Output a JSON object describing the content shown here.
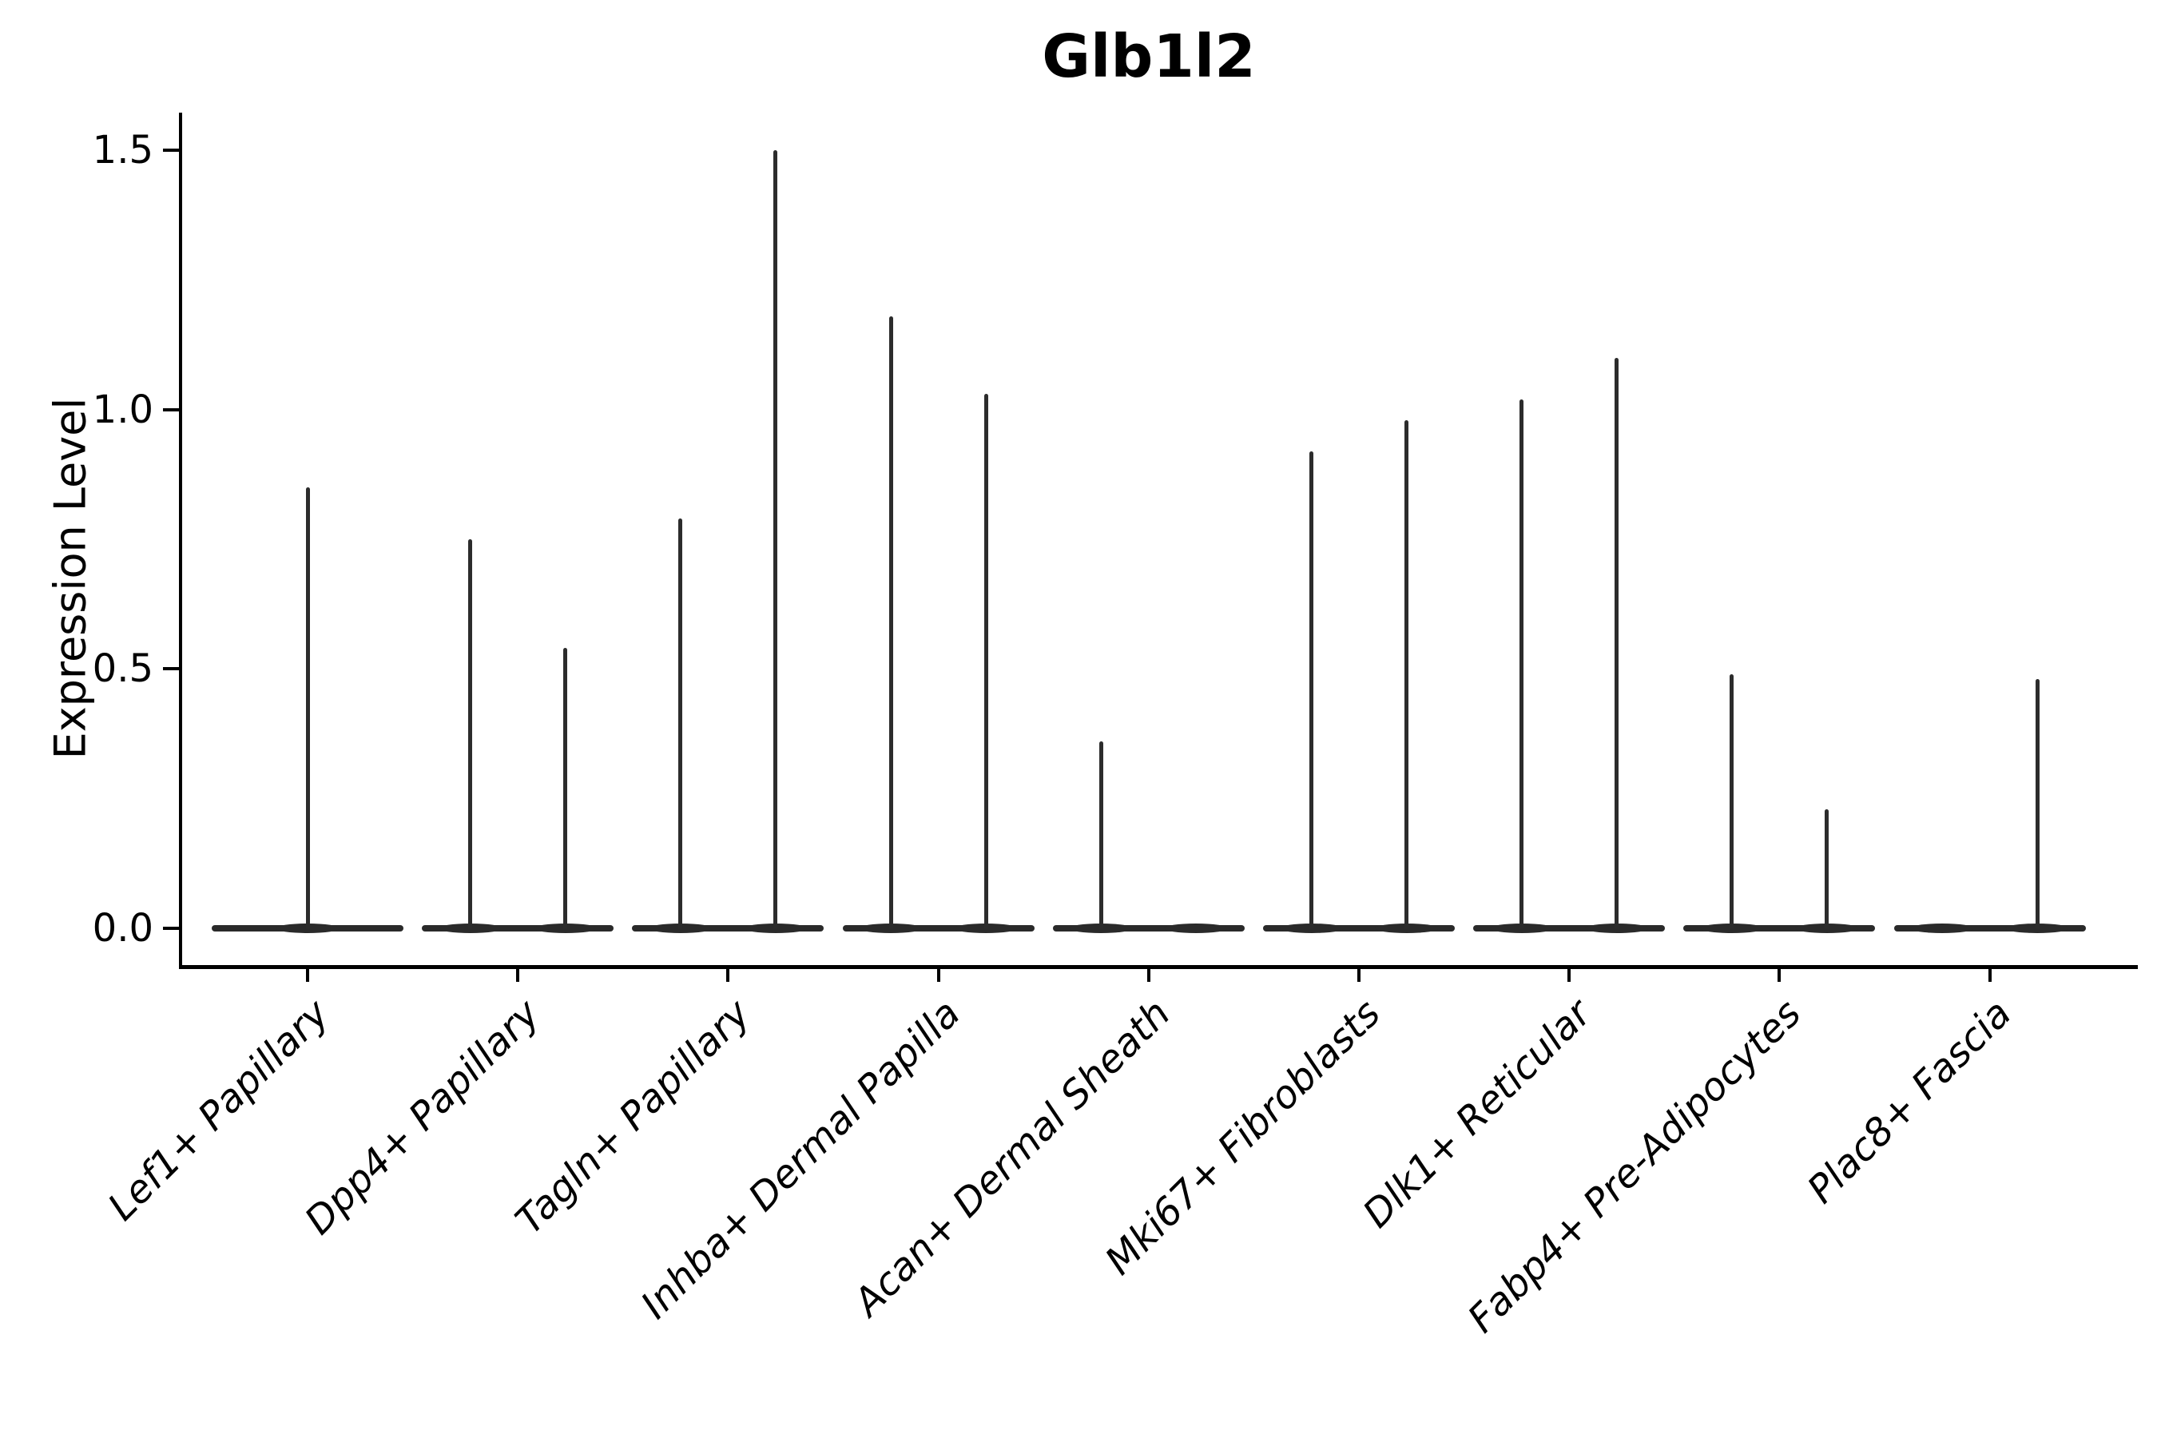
{
  "title": "Glb1l2",
  "y_axis": {
    "label": "Expression Level",
    "tick_labels": [
      "0.0",
      "0.5",
      "1.0",
      "1.5"
    ],
    "tick_values": [
      0.0,
      0.5,
      1.0,
      1.5
    ]
  },
  "chart_data": {
    "type": "violin",
    "title": "Glb1l2",
    "xlabel": "",
    "ylabel": "Expression Level",
    "ylim": [
      0,
      1.57
    ],
    "grid": false,
    "legend": "none",
    "description": "Single-cell expression violin plot; each cluster shows violins flattened at 0 with thin spikes reaching the maximum expression value.",
    "categories": [
      "Lef1+ Papillary",
      "Dpp4+ Papillary",
      "Tagln+ Papillary",
      "Inhba+ Dermal Papilla",
      "Acan+ Dermal Sheath",
      "Mki67+ Fibroblasts",
      "Dlk1+ Reticular",
      "Fabp4+ Pre-Adipocytes",
      "Plac8+ Fascia"
    ],
    "series": [
      {
        "category": "Lef1+ Papillary",
        "violins": [
          {
            "position": "center",
            "baseline_value": 0.0,
            "max_expression": 0.85
          }
        ]
      },
      {
        "category": "Dpp4+ Papillary",
        "violins": [
          {
            "position": "left",
            "baseline_value": 0.0,
            "max_expression": 0.75
          },
          {
            "position": "right",
            "baseline_value": 0.0,
            "max_expression": 0.54
          }
        ]
      },
      {
        "category": "Tagln+ Papillary",
        "violins": [
          {
            "position": "left",
            "baseline_value": 0.0,
            "max_expression": 0.79
          },
          {
            "position": "right",
            "baseline_value": 0.0,
            "max_expression": 1.5
          }
        ]
      },
      {
        "category": "Inhba+ Dermal Papilla",
        "violins": [
          {
            "position": "left",
            "baseline_value": 0.0,
            "max_expression": 1.18
          },
          {
            "position": "right",
            "baseline_value": 0.0,
            "max_expression": 1.03
          }
        ]
      },
      {
        "category": "Acan+ Dermal Sheath",
        "violins": [
          {
            "position": "left",
            "baseline_value": 0.0,
            "max_expression": 0.36
          },
          {
            "position": "right",
            "baseline_value": 0.0,
            "max_expression": 0.0
          }
        ]
      },
      {
        "category": "Mki67+ Fibroblasts",
        "violins": [
          {
            "position": "left",
            "baseline_value": 0.0,
            "max_expression": 0.92
          },
          {
            "position": "right",
            "baseline_value": 0.0,
            "max_expression": 0.98
          }
        ]
      },
      {
        "category": "Dlk1+ Reticular",
        "violins": [
          {
            "position": "left",
            "baseline_value": 0.0,
            "max_expression": 1.02
          },
          {
            "position": "right",
            "baseline_value": 0.0,
            "max_expression": 1.1
          }
        ]
      },
      {
        "category": "Fabp4+ Pre-Adipocytes",
        "violins": [
          {
            "position": "left",
            "baseline_value": 0.0,
            "max_expression": 0.49
          },
          {
            "position": "right",
            "baseline_value": 0.0,
            "max_expression": 0.23
          }
        ]
      },
      {
        "category": "Plac8+ Fascia",
        "violins": [
          {
            "position": "left",
            "baseline_value": 0.0,
            "max_expression": 0.0
          },
          {
            "position": "right",
            "baseline_value": 0.0,
            "max_expression": 0.48
          }
        ]
      }
    ],
    "colors": {
      "violin": "#2a2a2a",
      "axis": "#000000",
      "text": "#000000",
      "background": "#ffffff"
    }
  }
}
